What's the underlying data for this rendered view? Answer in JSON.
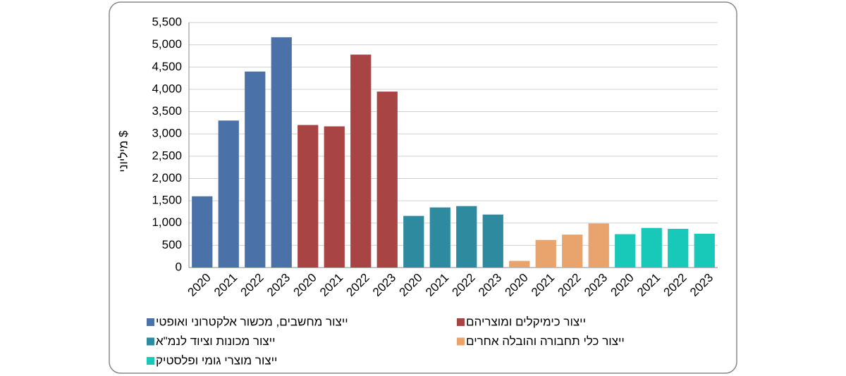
{
  "chart_data": {
    "type": "bar",
    "y_label": "מיליוני $",
    "categories": [
      "2020",
      "2021",
      "2022",
      "2023",
      "2020",
      "2021",
      "2022",
      "2023",
      "2020",
      "2021",
      "2022",
      "2023",
      "2020",
      "2021",
      "2022",
      "2023",
      "2020",
      "2021",
      "2022",
      "2023"
    ],
    "series": [
      {
        "name": "ייצור מחשבים, מכשור אלקטרוני ואופטי",
        "color": "#4a72a8",
        "values": [
          1600,
          3300,
          4400,
          5170,
          null,
          null,
          null,
          null,
          null,
          null,
          null,
          null,
          null,
          null,
          null,
          null,
          null,
          null,
          null,
          null
        ]
      },
      {
        "name": "ייצור כימיקלים ומוצריהם",
        "color": "#a84444",
        "values": [
          null,
          null,
          null,
          null,
          3200,
          3170,
          4780,
          3950,
          null,
          null,
          null,
          null,
          null,
          null,
          null,
          null,
          null,
          null,
          null,
          null
        ]
      },
      {
        "name": "ייצור מכונות וציוד לנמ\"א",
        "color": "#2e8a9e",
        "values": [
          null,
          null,
          null,
          null,
          null,
          null,
          null,
          null,
          1160,
          1350,
          1380,
          1190,
          null,
          null,
          null,
          null,
          null,
          null,
          null,
          null
        ]
      },
      {
        "name": "ייצור כלי תחבורה והובלה אחרים",
        "color": "#e8a46c",
        "values": [
          null,
          null,
          null,
          null,
          null,
          null,
          null,
          null,
          null,
          null,
          null,
          null,
          150,
          620,
          740,
          990,
          null,
          null,
          null,
          null
        ]
      },
      {
        "name": "ייצור מוצרי גומי ופלסטיק",
        "color": "#18c8b8",
        "values": [
          null,
          null,
          null,
          null,
          null,
          null,
          null,
          null,
          null,
          null,
          null,
          null,
          null,
          null,
          null,
          null,
          750,
          890,
          870,
          760
        ]
      }
    ],
    "ylim": [
      0,
      5500
    ],
    "yticks": [
      0,
      500,
      {
        "value": 1000,
        "label": "1,000"
      },
      {
        "value": 1500,
        "label": "1,500"
      },
      {
        "value": 2000,
        "label": "2,000"
      },
      {
        "value": 2500,
        "label": "2,500"
      },
      {
        "value": 3000,
        "label": "3,000"
      },
      {
        "value": 3500,
        "label": "3,500"
      },
      {
        "value": 4000,
        "label": "4,000"
      },
      {
        "value": 4500,
        "label": "4,500"
      },
      {
        "value": 5000,
        "label": "5,000"
      },
      {
        "value": 5500,
        "label": "5,500"
      }
    ],
    "grid": true
  }
}
